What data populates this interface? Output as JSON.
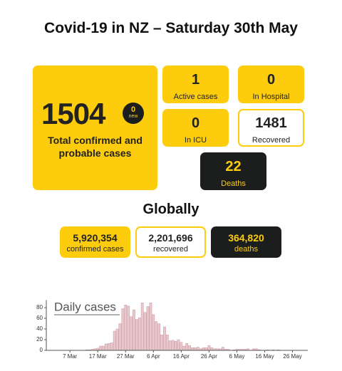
{
  "header": {
    "title": "Covid-19 in NZ – Saturday 30th May"
  },
  "nz": {
    "total": {
      "value": "1504",
      "new_value": "0",
      "new_label": "new",
      "label": "Total confirmed and probable cases"
    },
    "stats": [
      {
        "value": "1",
        "label": "Active cases"
      },
      {
        "value": "0",
        "label": "In Hospital"
      },
      {
        "value": "0",
        "label": "In ICU"
      },
      {
        "value": "1481",
        "label": "Recovered"
      },
      {
        "value": "22",
        "label": "Deaths"
      }
    ]
  },
  "global": {
    "title": "Globally",
    "stats": [
      {
        "value": "5,920,354",
        "label": "confirmed cases"
      },
      {
        "value": "2,201,696",
        "label": "recovered"
      },
      {
        "value": "364,820",
        "label": "deaths"
      }
    ]
  },
  "chart_data": {
    "type": "bar",
    "title": "Daily cases",
    "color": "#e9c8cd",
    "edge_color": "#c99aa3",
    "x": [
      13,
      14,
      15,
      16,
      17,
      18,
      19,
      20,
      21,
      22,
      23,
      24,
      25,
      26,
      27,
      28,
      29,
      30,
      31,
      32,
      33,
      34,
      35,
      36,
      37,
      38,
      39,
      40,
      41,
      42,
      43,
      44,
      45,
      46,
      47,
      48,
      49,
      50,
      51,
      52,
      53,
      54,
      55,
      56,
      57,
      58,
      59,
      60,
      61,
      62,
      63,
      64,
      65,
      66,
      67,
      68,
      69,
      70,
      71,
      72,
      73,
      74,
      75,
      76,
      77,
      78,
      79,
      80,
      81,
      82,
      83,
      84,
      85,
      86,
      87,
      88,
      89
    ],
    "values": [
      1,
      1,
      2,
      3,
      4,
      8,
      8,
      12,
      13,
      14,
      36,
      40,
      50,
      78,
      85,
      83,
      63,
      76,
      58,
      61,
      89,
      71,
      82,
      89,
      67,
      54,
      50,
      29,
      44,
      29,
      18,
      19,
      17,
      20,
      15,
      8,
      13,
      9,
      5,
      5,
      6,
      3,
      5,
      5,
      9,
      5,
      3,
      3,
      3,
      6,
      2,
      2,
      0,
      1,
      2,
      2,
      2,
      2,
      3,
      0,
      3,
      3,
      1,
      0,
      0,
      1,
      0,
      1,
      0,
      1,
      0,
      0,
      0,
      0,
      0,
      0,
      0
    ],
    "xlim": [
      -1.5,
      92.5
    ],
    "xticks": [
      {
        "value": 7,
        "label": "7 Mar"
      },
      {
        "value": 17,
        "label": "17 Mar"
      },
      {
        "value": 27,
        "label": "27 Mar"
      },
      {
        "value": 37,
        "label": "6 Apr"
      },
      {
        "value": 47,
        "label": "16 Apr"
      },
      {
        "value": 57,
        "label": "26 Apr"
      },
      {
        "value": 67,
        "label": "6 May"
      },
      {
        "value": 77,
        "label": "16 May"
      },
      {
        "value": 87,
        "label": "26 May"
      }
    ],
    "ylim": [
      0,
      90
    ],
    "yticks": [
      0,
      20,
      40,
      60,
      80
    ]
  }
}
